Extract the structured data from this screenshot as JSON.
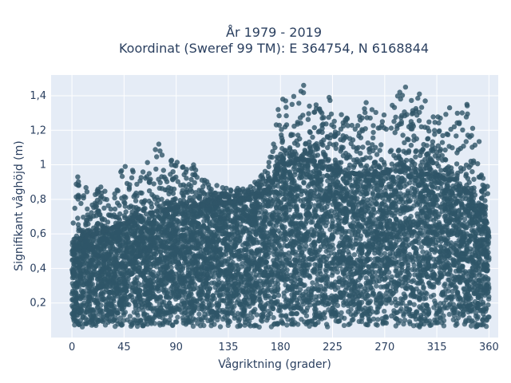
{
  "chart_data": {
    "type": "scatter",
    "title": "År 1979 - 2019",
    "subtitle": "Koordinat (Sweref 99 TM): E 364754, N 6168844",
    "xlabel": "Vågriktning (grader)",
    "ylabel": "Signifikant våghöjd (m)",
    "xlim": [
      -18,
      368
    ],
    "ylim": [
      0.0,
      1.52
    ],
    "x_ticks": [
      0,
      45,
      90,
      135,
      180,
      225,
      270,
      315,
      360
    ],
    "x_tick_labels": [
      "0",
      "45",
      "90",
      "135",
      "180",
      "225",
      "270",
      "315",
      "360"
    ],
    "y_ticks": [
      0.2,
      0.4,
      0.6,
      0.8,
      1.0,
      1.2,
      1.4
    ],
    "y_tick_labels": [
      "0,2",
      "0,4",
      "0,6",
      "0,8",
      "1",
      "1,2",
      "1,4"
    ],
    "grid": true,
    "marker_color": "#2f5568",
    "plot_background": "#e5ecf6",
    "envelope": {
      "direction_deg": [
        0,
        30,
        45,
        60,
        75,
        90,
        105,
        120,
        135,
        150,
        165,
        170,
        180,
        195,
        210,
        225,
        240,
        255,
        270,
        285,
        300,
        315,
        330,
        345,
        355,
        360
      ],
      "dense_upper_m": [
        0.55,
        0.62,
        0.66,
        0.7,
        0.73,
        0.75,
        0.76,
        0.77,
        0.78,
        0.8,
        0.82,
        0.86,
        0.98,
        1.03,
        1.02,
        0.97,
        0.95,
        0.94,
        0.95,
        0.97,
        0.96,
        0.93,
        0.9,
        0.82,
        0.75,
        0.6
      ],
      "max_m": [
        0.93,
        0.88,
        0.99,
        0.96,
        1.12,
        1.03,
        1.0,
        0.9,
        0.87,
        0.86,
        0.95,
        1.05,
        1.37,
        1.46,
        1.38,
        1.39,
        1.25,
        1.36,
        1.3,
        1.45,
        1.41,
        1.3,
        1.33,
        1.35,
        1.05,
        0.9
      ],
      "min_m": 0.06
    },
    "outliers": [
      {
        "x": 5,
        "y": 0.93
      },
      {
        "x": 46,
        "y": 0.99
      },
      {
        "x": 75,
        "y": 1.12
      },
      {
        "x": 76,
        "y": 1.08
      },
      {
        "x": 86,
        "y": 1.0
      },
      {
        "x": 105,
        "y": 1.0
      },
      {
        "x": 164,
        "y": 0.94
      },
      {
        "x": 178,
        "y": 1.32
      },
      {
        "x": 182,
        "y": 1.38
      },
      {
        "x": 190,
        "y": 1.35
      },
      {
        "x": 200,
        "y": 1.46
      },
      {
        "x": 205,
        "y": 1.34
      },
      {
        "x": 216,
        "y": 1.23
      },
      {
        "x": 222,
        "y": 1.39
      },
      {
        "x": 236,
        "y": 1.26
      },
      {
        "x": 254,
        "y": 1.36
      },
      {
        "x": 268,
        "y": 1.25
      },
      {
        "x": 283,
        "y": 1.42
      },
      {
        "x": 288,
        "y": 1.45
      },
      {
        "x": 300,
        "y": 1.41
      },
      {
        "x": 305,
        "y": 1.37
      },
      {
        "x": 318,
        "y": 1.27
      },
      {
        "x": 326,
        "y": 1.33
      },
      {
        "x": 341,
        "y": 1.35
      },
      {
        "x": 330,
        "y": 1.22
      },
      {
        "x": 345,
        "y": 1.17
      }
    ]
  }
}
